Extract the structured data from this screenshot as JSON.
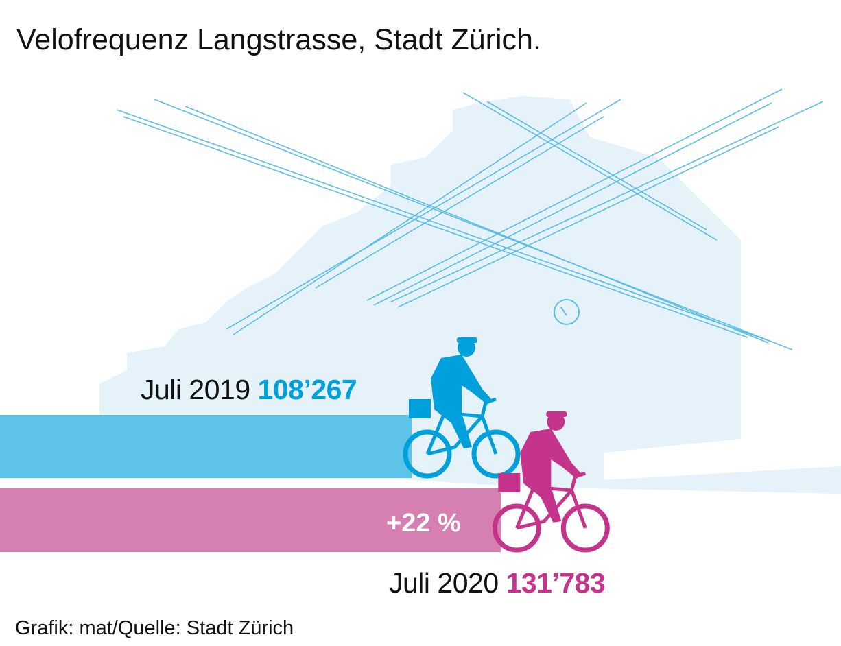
{
  "title": "Velofrequenz Langstrasse, Stadt Zürich.",
  "source": "Grafik: mat/Quelle: Stadt Zürich",
  "colors": {
    "bar_2019": "#5ec3e8",
    "text_2019": "#00a0dc",
    "bar_2020": "#d580b0",
    "text_2020": "#c4348a",
    "background_building": "#e5f2fa",
    "wires": "#5bbde6"
  },
  "chart_data": {
    "type": "bar",
    "orientation": "horizontal",
    "title": "Velofrequenz Langstrasse, Stadt Zürich.",
    "categories": [
      "Juli 2019",
      "Juli 2020"
    ],
    "values": [
      108267,
      131783
    ],
    "value_labels": [
      "108’267",
      "131’783"
    ],
    "annotation": "+22 %",
    "xlim": [
      0,
      108267
    ],
    "grid": false,
    "legend": "none"
  }
}
